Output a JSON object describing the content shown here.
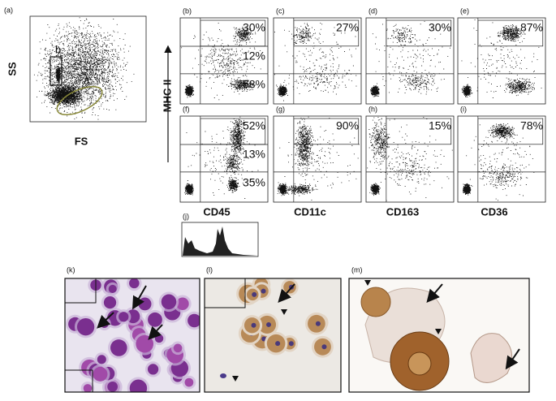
{
  "panel_a": {
    "label": "(a)",
    "y_axis": "SS",
    "x_axis": "FS",
    "gate_a": "a",
    "gate_b": "b"
  },
  "y_axis_label": "MHC II",
  "flow": [
    {
      "label": "(b)",
      "percents": [
        "30%",
        "12%",
        "58%"
      ]
    },
    {
      "label": "(c)",
      "percents": [
        "27%"
      ]
    },
    {
      "label": "(d)",
      "percents": [
        "30%"
      ]
    },
    {
      "label": "(e)",
      "percents": [
        "87%"
      ]
    },
    {
      "label": "(f)",
      "percents": [
        "52%",
        "13%",
        "35%"
      ]
    },
    {
      "label": "(g)",
      "percents": [
        "90%"
      ]
    },
    {
      "label": "(h)",
      "percents": [
        "15%"
      ]
    },
    {
      "label": "(i)",
      "percents": [
        "78%"
      ]
    }
  ],
  "markers": [
    "CD45",
    "CD11c",
    "CD163",
    "CD36"
  ],
  "panel_j": {
    "label": "(j)"
  },
  "panel_k": {
    "label": "(k)"
  },
  "panel_l": {
    "label": "(l)"
  },
  "panel_m": {
    "label": "(m)"
  }
}
